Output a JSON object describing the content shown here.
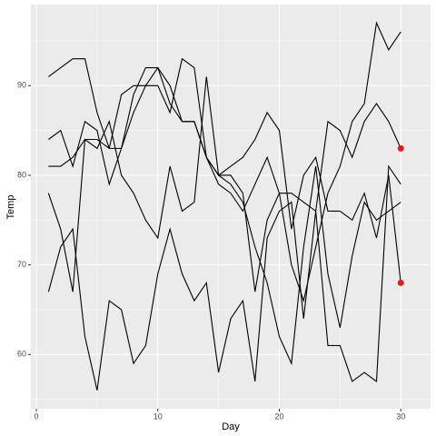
{
  "chart_data": {
    "type": "line",
    "x_label": "Day",
    "y_label": "Temp",
    "x": [
      1,
      2,
      3,
      4,
      5,
      6,
      7,
      8,
      9,
      10,
      11,
      12,
      13,
      14,
      15,
      16,
      17,
      18,
      19,
      20,
      21,
      22,
      23,
      24,
      25,
      26,
      27,
      28,
      29,
      30
    ],
    "series": [
      {
        "color": "#000000",
        "values": [
          91,
          92,
          93,
          93,
          87,
          83,
          83,
          89,
          92,
          92,
          90,
          86,
          86,
          82,
          80,
          79,
          77,
          72,
          68,
          62,
          59,
          72,
          81,
          69,
          63,
          71,
          77,
          75,
          76,
          77
        ]
      },
      {
        "color": "#000000",
        "values": [
          84,
          85,
          81,
          86,
          85,
          79,
          83,
          87,
          90,
          90,
          87,
          93,
          92,
          82,
          79,
          78,
          76,
          79,
          82,
          78,
          70,
          66,
          72,
          78,
          81,
          86,
          88,
          97,
          94,
          96
        ]
      },
      {
        "color": "#000000",
        "values": [
          81,
          81,
          82,
          84,
          84,
          83,
          89,
          90,
          90,
          92,
          88,
          86,
          86,
          82,
          80,
          80,
          78,
          67,
          75,
          78,
          78,
          77,
          76,
          86,
          85,
          82,
          86,
          88,
          86,
          83
        ]
      },
      {
        "color": "#000000",
        "values": [
          78,
          74,
          67,
          84,
          83,
          86,
          80,
          78,
          75,
          73,
          81,
          76,
          77,
          91,
          80,
          81,
          82,
          84,
          87,
          85,
          74,
          80,
          82,
          76,
          76,
          75,
          78,
          73,
          80,
          68
        ]
      },
      {
        "color": "#000000",
        "values": [
          67,
          72,
          74,
          62,
          56,
          66,
          65,
          59,
          61,
          69,
          74,
          69,
          66,
          68,
          58,
          64,
          66,
          57,
          73,
          76,
          77,
          64,
          76,
          61,
          61,
          57,
          58,
          57,
          81,
          79
        ]
      }
    ],
    "points": {
      "color": "#e41a1c",
      "x": [
        30,
        30
      ],
      "values": [
        83,
        68
      ]
    },
    "xlim": [
      -0.45,
      32.45
    ],
    "ylim": [
      53.95,
      99.05
    ],
    "xticks": [
      0,
      10,
      20,
      30
    ],
    "yticks": [
      60,
      70,
      80,
      90
    ],
    "xminor": [
      5,
      15,
      25
    ],
    "yminor": [
      55,
      65,
      75,
      85,
      95
    ],
    "grid": true,
    "panel_color": "#ebebeb",
    "grid_color": "#ffffff"
  }
}
